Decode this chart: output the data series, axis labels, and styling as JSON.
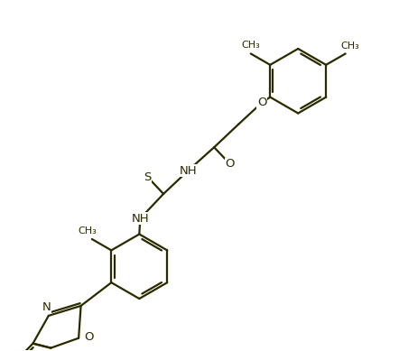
{
  "bg_color": "#ffffff",
  "line_color": "#2a2a00",
  "line_width": 1.6,
  "font_size": 9.5,
  "figsize": [
    4.42,
    3.89
  ],
  "dpi": 100,
  "xlim": [
    0,
    8.8
  ],
  "ylim": [
    0,
    7.78
  ]
}
